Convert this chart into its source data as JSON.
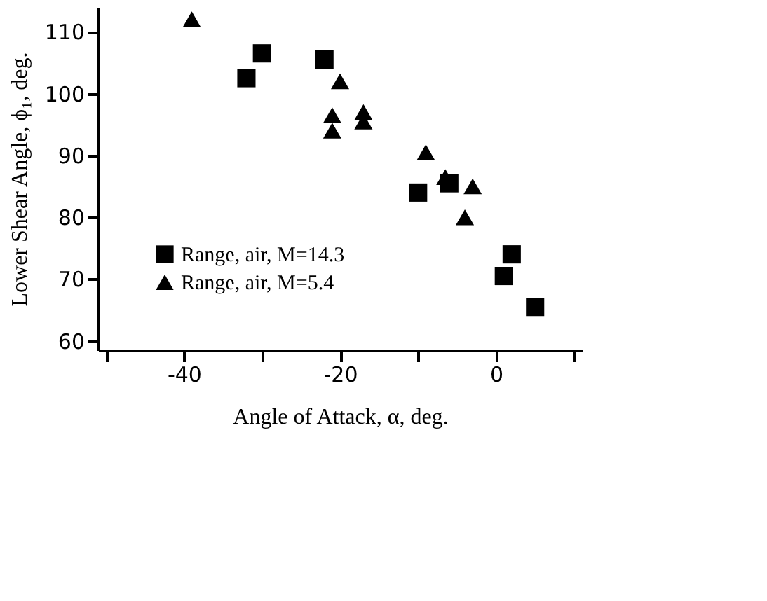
{
  "chart_data": {
    "type": "scatter",
    "xlabel": "Angle of Attack, α, deg.",
    "ylabel": "Lower Shear Angle, ϕ₁, deg.",
    "xlim": [
      -51,
      11
    ],
    "xticks": [
      {
        "value": -50,
        "label": null
      },
      -40,
      {
        "value": -30,
        "label": null
      },
      -20,
      {
        "value": -10,
        "label": null
      },
      0,
      {
        "value": 10,
        "label": null
      }
    ],
    "ylim": [
      58.5,
      114
    ],
    "yticks": [
      60,
      70,
      80,
      90,
      100,
      110
    ],
    "grid": false,
    "legend": "bottom left",
    "series": [
      {
        "name": "Range, air, M=14.3",
        "color": "#000000",
        "marker": "square",
        "x": [
          -32,
          -30,
          -22,
          -10,
          -6,
          1,
          2,
          5
        ],
        "values": [
          102.5,
          106.5,
          105.5,
          84,
          85.5,
          70.5,
          74,
          65.5
        ]
      },
      {
        "name": "Range, air, M=5.4",
        "color": "#000000",
        "marker": "triangle",
        "x": [
          -39,
          -20,
          -21,
          -21,
          -17,
          -17,
          -9,
          -6.5,
          -3,
          -4
        ],
        "values": [
          112,
          102,
          96.5,
          94,
          97,
          95.5,
          90.5,
          86.5,
          85,
          80
        ]
      }
    ]
  }
}
